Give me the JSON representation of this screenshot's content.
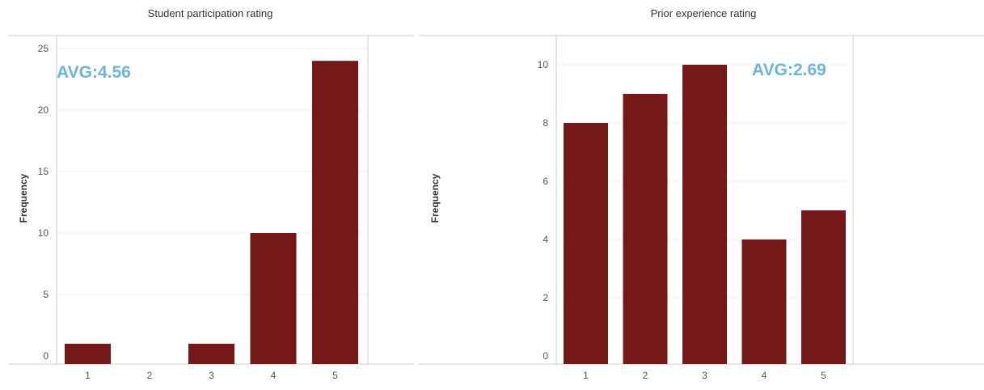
{
  "colors": {
    "bar": "#751818",
    "avg": "#6bb4dc",
    "grid": "#ececec",
    "axis": "#cccccc"
  },
  "chart_data": [
    {
      "type": "bar",
      "title": "Student participation rating",
      "categories": [
        "1",
        "2",
        "3",
        "4",
        "5"
      ],
      "values": [
        1,
        0,
        1,
        10,
        24
      ],
      "ylabel": "Frequency",
      "ylim": [
        0,
        25
      ],
      "yticks": [
        0,
        5,
        10,
        15,
        20,
        25
      ],
      "annotation": "AVG:4.56",
      "grid": true
    },
    {
      "type": "bar",
      "title": "Prior experience rating",
      "categories": [
        "1",
        "2",
        "3",
        "4",
        "5"
      ],
      "values": [
        8,
        9,
        10,
        4,
        5
      ],
      "ylabel": "Frequency",
      "ylim": [
        0,
        11
      ],
      "yticks": [
        0,
        2,
        4,
        6,
        8,
        10
      ],
      "annotation": "AVG:2.69",
      "grid": true
    }
  ]
}
